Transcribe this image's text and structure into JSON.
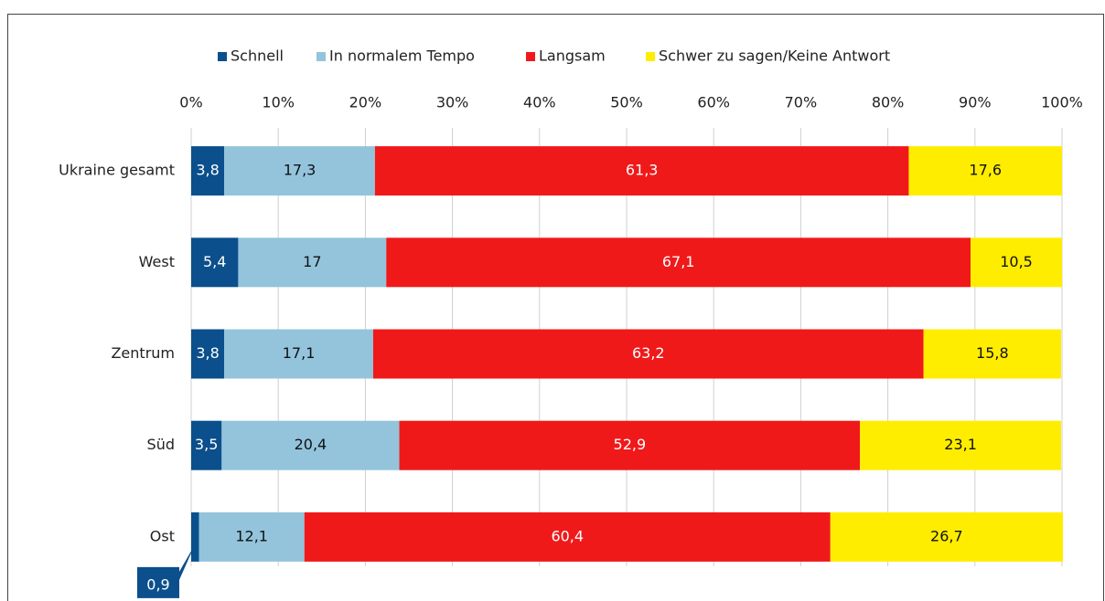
{
  "chart_data": {
    "type": "bar",
    "orientation": "horizontal",
    "stacked": true,
    "categories": [
      "Ukraine gesamt",
      "West",
      "Zentrum",
      "Süd",
      "Ost"
    ],
    "series": [
      {
        "name": "Schnell",
        "color": "#0b4f8c",
        "values": [
          3.8,
          5.4,
          3.8,
          3.5,
          0.9
        ],
        "value_labels": [
          "3,8",
          "5,4",
          "3,8",
          "3,5",
          "0,9"
        ]
      },
      {
        "name": "In normalem Tempo",
        "color": "#93c4dc",
        "values": [
          17.3,
          17,
          17.1,
          20.4,
          12.1
        ],
        "value_labels": [
          "17,3",
          "17",
          "17,1",
          "20,4",
          "12,1"
        ]
      },
      {
        "name": "Langsam",
        "color": "#f0191a",
        "values": [
          61.3,
          67.1,
          63.2,
          52.9,
          60.4
        ],
        "value_labels": [
          "61,3",
          "67,1",
          "63,2",
          "52,9",
          "60,4"
        ]
      },
      {
        "name": "Schwer zu sagen/Keine Antwort",
        "color": "#ffed00",
        "values": [
          17.6,
          10.5,
          15.8,
          23.1,
          26.7
        ],
        "value_labels": [
          "17,6",
          "10,5",
          "15,8",
          "23,1",
          "26,7"
        ]
      }
    ],
    "xlim": [
      0,
      100
    ],
    "xticks": [
      {
        "value": 0,
        "label": "0%"
      },
      {
        "value": 10,
        "label": "10%"
      },
      {
        "value": 20,
        "label": "20%"
      },
      {
        "value": 30,
        "label": "30%"
      },
      {
        "value": 40,
        "label": "40%"
      },
      {
        "value": 50,
        "label": "50%"
      },
      {
        "value": 60,
        "label": "60%"
      },
      {
        "value": 70,
        "label": "70%"
      },
      {
        "value": 80,
        "label": "80%"
      },
      {
        "value": 90,
        "label": "90%"
      },
      {
        "value": 100,
        "label": "100%"
      }
    ],
    "grid": true,
    "legend": "top"
  }
}
